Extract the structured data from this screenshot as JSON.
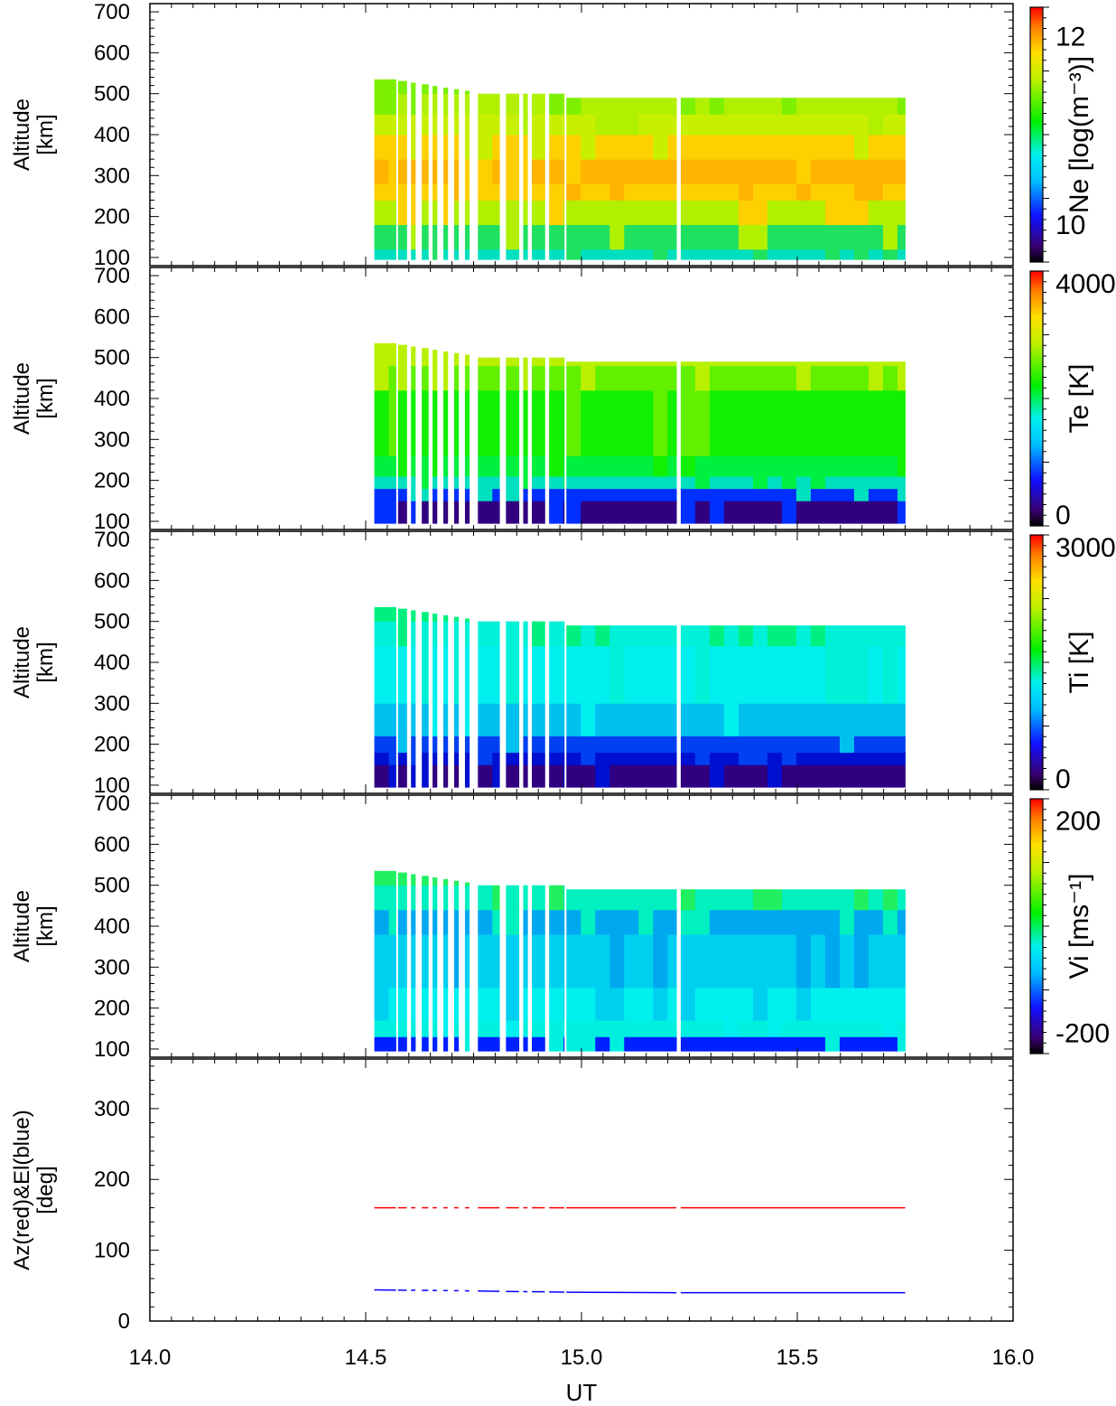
{
  "chart_data": {
    "type": "heatmap",
    "xlabel": "UT",
    "xlim": [
      14.0,
      16.0
    ],
    "xticks": [
      "14.0",
      "14.5",
      "15.0",
      "15.5",
      "16.0"
    ],
    "data_extent": {
      "ut_start": 14.52,
      "ut_end": 15.75,
      "scan_blocks": [
        [
          14.52,
          14.57
        ],
        [
          14.575,
          14.595
        ],
        [
          14.605,
          14.615
        ],
        [
          14.63,
          14.645
        ],
        [
          14.655,
          14.665
        ],
        [
          14.68,
          14.69
        ],
        [
          14.705,
          14.715
        ],
        [
          14.73,
          14.74
        ],
        [
          14.76,
          14.81
        ],
        [
          14.825,
          14.855
        ],
        [
          14.865,
          14.875
        ],
        [
          14.885,
          14.915
        ],
        [
          14.925,
          14.96
        ],
        [
          14.965,
          15.22
        ],
        [
          15.23,
          15.75
        ]
      ],
      "gap_ut": 15.225
    },
    "panels": [
      {
        "ylabel": [
          "Altitude",
          "[km]"
        ],
        "ylim": [
          80,
          720
        ],
        "yticks": [
          "100",
          "200",
          "300",
          "400",
          "500",
          "600",
          "700"
        ],
        "cbar_label": "Ne [log(m⁻³)]",
        "cbar_ticks": [
          "10",
          "12"
        ],
        "cbar_range": [
          9.6,
          12.3
        ],
        "colors": {
          "top_layer": "#7cf000",
          "upper": "#c6f000",
          "peak": "#ffd000",
          "peak_core": "#ffb400",
          "lower": "#b0f000",
          "e_region": "#20e060",
          "bottom": "#00e0c0"
        },
        "altitude_profile": [
          {
            "alt": 100,
            "value": 10.3
          },
          {
            "alt": 150,
            "value": 10.9
          },
          {
            "alt": 200,
            "value": 11.3
          },
          {
            "alt": 250,
            "value": 11.6
          },
          {
            "alt": 300,
            "value": 11.8
          },
          {
            "alt": 350,
            "value": 11.7
          },
          {
            "alt": 400,
            "value": 11.5
          },
          {
            "alt": 450,
            "value": 11.2
          },
          {
            "alt": 500,
            "value": 11.0
          }
        ]
      },
      {
        "ylabel": [
          "Altitude",
          "[km]"
        ],
        "ylim": [
          80,
          720
        ],
        "yticks": [
          "100",
          "200",
          "300",
          "400",
          "500",
          "600",
          "700"
        ],
        "cbar_label": "Te [K]",
        "cbar_ticks": [
          "0",
          "4000"
        ],
        "cbar_range": [
          -200,
          4200
        ],
        "colors": {
          "top_layer": "#b8f000",
          "upper": "#60f000",
          "middle": "#10f000",
          "lower": "#00f040",
          "cyan_band": "#00e0c0",
          "blue_band": "#0030ff",
          "bottom": "#300080"
        },
        "altitude_profile": [
          {
            "alt": 100,
            "value": 300
          },
          {
            "alt": 150,
            "value": 800
          },
          {
            "alt": 200,
            "value": 1700
          },
          {
            "alt": 250,
            "value": 2100
          },
          {
            "alt": 300,
            "value": 2200
          },
          {
            "alt": 400,
            "value": 2300
          },
          {
            "alt": 500,
            "value": 2700
          }
        ]
      },
      {
        "ylabel": [
          "Altitude",
          "[km]"
        ],
        "ylim": [
          80,
          720
        ],
        "yticks": [
          "100",
          "200",
          "300",
          "400",
          "500",
          "600",
          "700"
        ],
        "cbar_label": "Ti [K]",
        "cbar_ticks": [
          "0",
          "3000"
        ],
        "cbar_range": [
          -150,
          3150
        ],
        "colors": {
          "top_layer": "#00f080",
          "upper": "#00f0d8",
          "middle": "#00f0f0",
          "lower": "#00c0f0",
          "blue_band": "#0040f0",
          "deep_blue": "#0010d0",
          "bottom": "#300080"
        },
        "altitude_profile": [
          {
            "alt": 100,
            "value": 200
          },
          {
            "alt": 150,
            "value": 600
          },
          {
            "alt": 200,
            "value": 900
          },
          {
            "alt": 300,
            "value": 1100
          },
          {
            "alt": 400,
            "value": 1250
          },
          {
            "alt": 500,
            "value": 1400
          }
        ]
      },
      {
        "ylabel": [
          "Altitude",
          "[km]"
        ],
        "ylim": [
          80,
          720
        ],
        "yticks": [
          "100",
          "200",
          "300",
          "400",
          "500",
          "600",
          "700"
        ],
        "cbar_label": "Vi [ms⁻¹]",
        "cbar_ticks": [
          "-200",
          "200"
        ],
        "cbar_range": [
          -240,
          240
        ],
        "colors": {
          "top_layer": "#20f060",
          "upper": "#00f0c0",
          "middle": "#00d0f0",
          "mixed_a": "#00a8f0",
          "mixed_b": "#00f0f0",
          "lower": "#00f0e0",
          "bottom": "#0020ff"
        },
        "altitude_profile": [
          {
            "alt": 100,
            "value": -60
          },
          {
            "alt": 150,
            "value": -10
          },
          {
            "alt": 200,
            "value": -30
          },
          {
            "alt": 300,
            "value": -40
          },
          {
            "alt": 400,
            "value": -10
          },
          {
            "alt": 500,
            "value": 20
          }
        ]
      }
    ],
    "pointing_panel": {
      "ylabel": [
        "Az(red)&El(blue)",
        "[deg]"
      ],
      "ylim": [
        0,
        370
      ],
      "yticks": [
        "0",
        "100",
        "200",
        "300"
      ],
      "series": [
        {
          "color": "#ff0000",
          "values": [
            [
              14.52,
              160
            ],
            [
              15.75,
              160
            ]
          ]
        },
        {
          "color": "#0000ff",
          "values": [
            [
              14.52,
              44
            ],
            [
              14.7,
              43
            ],
            [
              14.8,
              42
            ],
            [
              14.95,
              41
            ],
            [
              15.0,
              40
            ],
            [
              15.75,
              40
            ]
          ]
        }
      ]
    }
  }
}
